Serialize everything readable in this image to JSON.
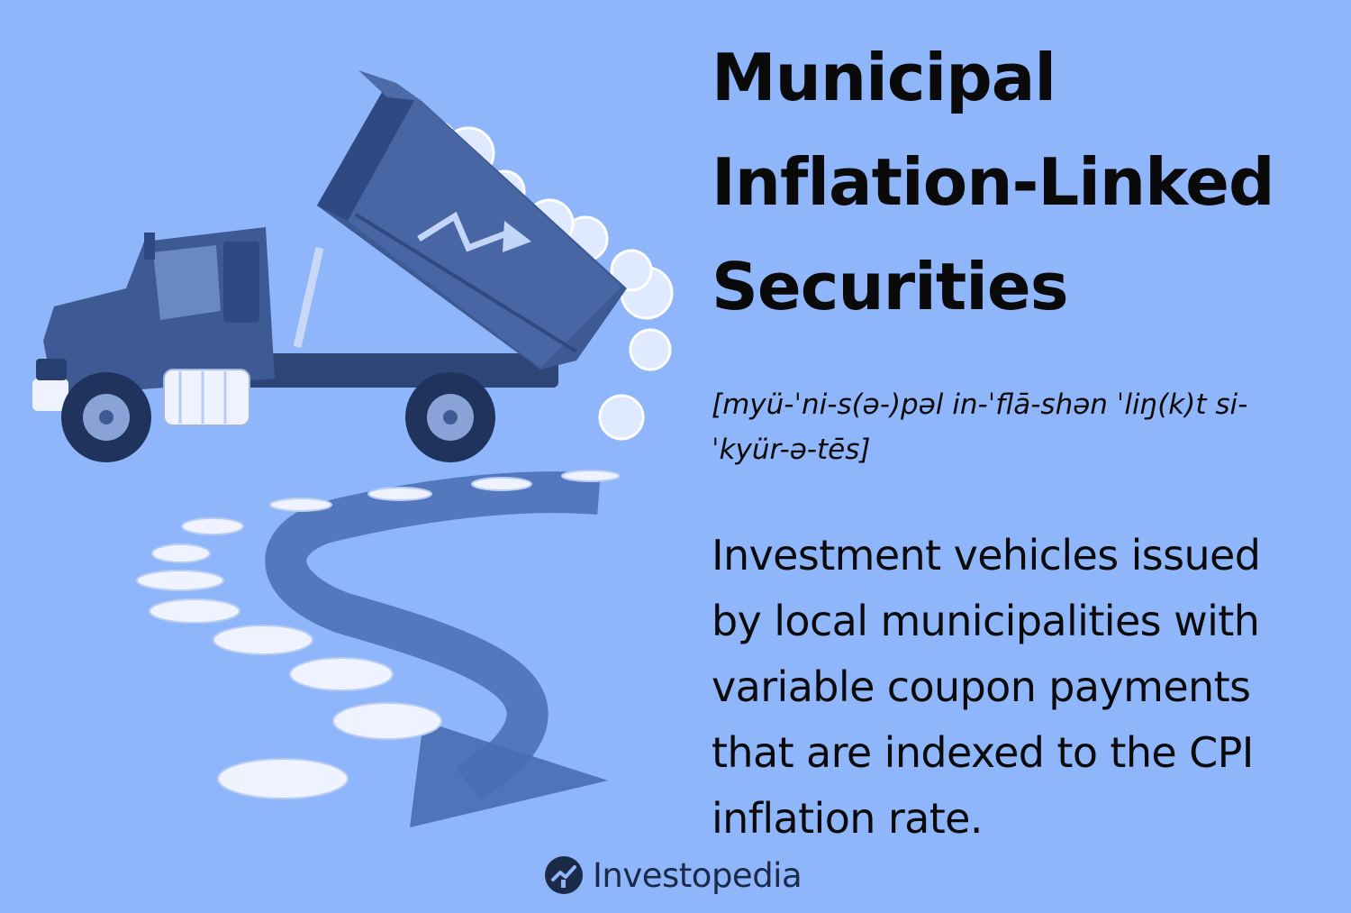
{
  "title_lines": [
    "Municipal",
    "Inflation-Linked",
    "Securities"
  ],
  "pronunciation_lines": [
    "[myü-ˈni-s(ə-)pəl in-ˈflā-shən ˈliŋ(k)t si-",
    "ˈkyür-ə-tēs]"
  ],
  "definition_lines": [
    "Investment vehicles issued",
    "by local municipalities with",
    "variable coupon payments",
    "that are indexed to the CPI",
    "inflation rate."
  ],
  "brand": {
    "name": "Investopedia",
    "icon": "investopedia-logo-icon"
  },
  "illustration": {
    "icons": [
      "dump-truck-icon",
      "coin-icon",
      "trend-arrow-icon",
      "winding-arrow-icon"
    ]
  },
  "colors": {
    "background": "#8fb6fb",
    "text": "#0a0a0a",
    "truck": "#3d5a95",
    "coin": "#eef3ff"
  }
}
